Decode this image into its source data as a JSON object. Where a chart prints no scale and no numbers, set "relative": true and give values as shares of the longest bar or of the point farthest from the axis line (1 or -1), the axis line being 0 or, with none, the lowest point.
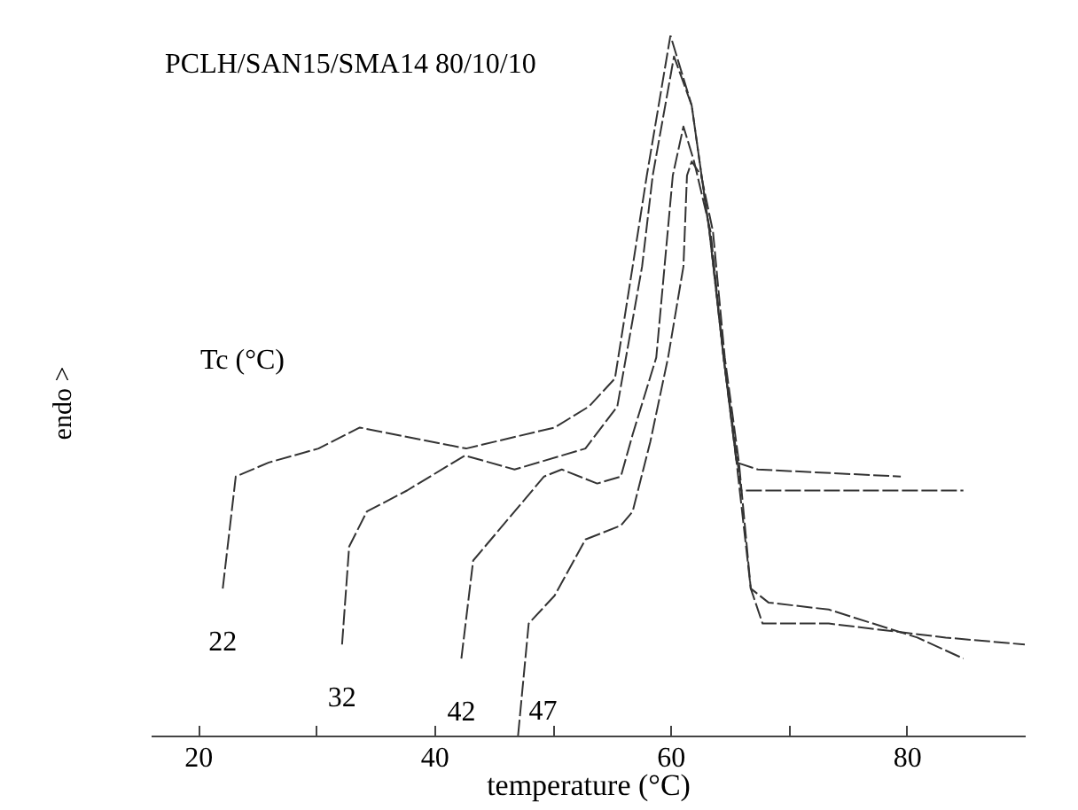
{
  "chart_data": {
    "type": "line",
    "title": "PCLH/SAN15/SMA14 80/10/10",
    "xlabel": "temperature (°C)",
    "ylabel": "endo >",
    "legend_title": "Tc (°C)",
    "relative": true,
    "xlim": [
      16,
      90
    ],
    "xticks": [
      20,
      {
        "value": 30,
        "label": null
      },
      40,
      {
        "value": 50,
        "label": null
      },
      60,
      {
        "value": 70,
        "label": null
      },
      80
    ],
    "legend": false,
    "grid": false,
    "series": [
      {
        "name": "22",
        "color": "#333333",
        "line_style": "dashed",
        "x": [
          22.1,
          23.2,
          26.0,
          30.2,
          33.7,
          42.7,
          50.2,
          53.1,
          55.3,
          56.8,
          58.0,
          60.0,
          61.8,
          63.3,
          64.5,
          65.6,
          67.4,
          79.5
        ],
        "values": [
          0.21,
          0.37,
          0.39,
          0.41,
          0.44,
          0.41,
          0.44,
          0.47,
          0.51,
          0.67,
          0.8,
          1.0,
          0.9,
          0.72,
          0.54,
          0.39,
          0.38,
          0.37
        ]
      },
      {
        "name": "32",
        "color": "#333333",
        "line_style": "dashed",
        "x": [
          32.2,
          32.8,
          34.3,
          37.7,
          42.6,
          46.8,
          52.8,
          55.5,
          57.6,
          58.5,
          60.3,
          61.8,
          63.3,
          64.5,
          66.0,
          68.3,
          84.8
        ],
        "values": [
          0.13,
          0.27,
          0.32,
          0.35,
          0.4,
          0.38,
          0.41,
          0.47,
          0.67,
          0.8,
          0.97,
          0.9,
          0.72,
          0.54,
          0.35,
          0.35,
          0.35
        ]
      },
      {
        "name": "42",
        "color": "#333333",
        "line_style": "dashed",
        "x": [
          42.3,
          43.3,
          45.3,
          49.3,
          50.8,
          53.8,
          55.8,
          56.8,
          58.8,
          59.5,
          60.2,
          61.1,
          62.0,
          63.4,
          64.5,
          65.6,
          66.8,
          67.8,
          73.4,
          83.3,
          90.0
        ],
        "values": [
          0.11,
          0.25,
          0.29,
          0.37,
          0.38,
          0.36,
          0.37,
          0.43,
          0.54,
          0.67,
          0.8,
          0.87,
          0.82,
          0.72,
          0.54,
          0.39,
          0.21,
          0.16,
          0.16,
          0.14,
          0.13
        ]
      },
      {
        "name": "47",
        "color": "#333333",
        "line_style": "dashed",
        "x": [
          47.1,
          48.0,
          50.2,
          52.8,
          55.8,
          56.8,
          58.3,
          59.8,
          61.1,
          61.4,
          61.8,
          62.6,
          63.6,
          64.6,
          65.8,
          66.8,
          68.3,
          73.4,
          80.9,
          84.8
        ],
        "values": [
          0.0,
          0.16,
          0.2,
          0.28,
          0.3,
          0.32,
          0.42,
          0.54,
          0.67,
          0.8,
          0.82,
          0.8,
          0.72,
          0.54,
          0.39,
          0.21,
          0.19,
          0.18,
          0.14,
          0.11
        ]
      }
    ]
  }
}
